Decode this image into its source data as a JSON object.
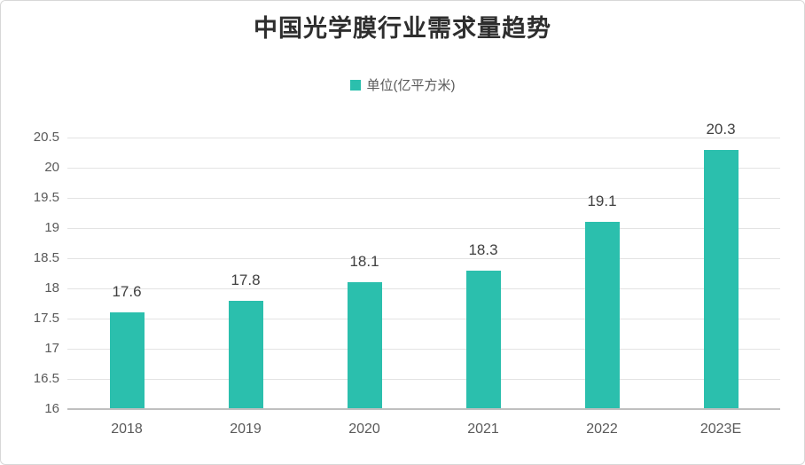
{
  "chart_data": {
    "type": "bar",
    "title": "中国光学膜行业需求量趋势",
    "legend_label": "单位(亿平方米)",
    "legend_position": "top",
    "categories": [
      "2018",
      "2019",
      "2020",
      "2021",
      "2022",
      "2023E"
    ],
    "values": [
      17.6,
      17.8,
      18.1,
      18.3,
      19.1,
      20.3
    ],
    "xlabel": "",
    "ylabel": "",
    "ylim": [
      16,
      20.5
    ],
    "ytick_step": 0.5,
    "ytick_labels": [
      "16",
      "16.5",
      "17",
      "17.5",
      "18",
      "18.5",
      "19",
      "19.5",
      "20",
      "20.5"
    ],
    "grid": true,
    "data_labels": [
      "17.6",
      "17.8",
      "18.1",
      "18.3",
      "19.1",
      "20.3"
    ]
  },
  "colors": {
    "bar_fill": "#2bbfad",
    "title_text": "#2e2e2e",
    "axis_text": "#595959",
    "value_label_text": "#404040",
    "gridline": "#e3e3e3",
    "axis_line": "#bfbfbf",
    "frame_border": "#d8d8d8",
    "background": "#ffffff"
  }
}
